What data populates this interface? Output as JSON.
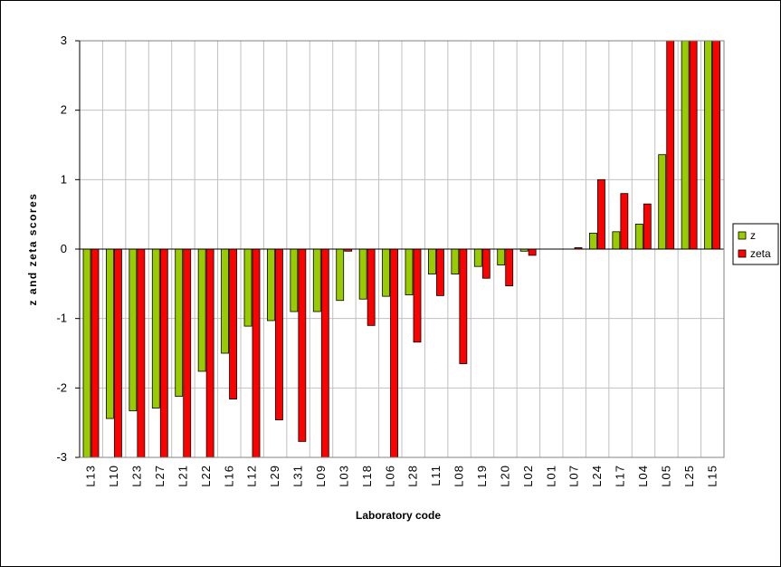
{
  "chart_data": {
    "type": "bar",
    "x_label": "Laboratory code",
    "y_label": "z and zeta scores",
    "categories": [
      "L13",
      "L10",
      "L23",
      "L27",
      "L21",
      "L22",
      "L16",
      "L12",
      "L29",
      "L31",
      "L09",
      "L03",
      "L18",
      "L06",
      "L28",
      "L11",
      "L08",
      "L19",
      "L20",
      "L02",
      "L01",
      "L07",
      "L24",
      "L17",
      "L04",
      "L05",
      "L25",
      "L15"
    ],
    "series": [
      {
        "name": "z",
        "color": "#99cc00",
        "values": [
          -3,
          -2.44,
          -2.33,
          -2.29,
          -2.12,
          -1.76,
          -1.5,
          -1.11,
          -1.03,
          -0.9,
          -0.9,
          -0.74,
          -0.72,
          -0.68,
          -0.66,
          -0.36,
          -0.36,
          -0.25,
          -0.23,
          -0.03,
          0,
          0,
          0.23,
          0.25,
          0.36,
          1.36,
          3,
          3
        ]
      },
      {
        "name": "zeta",
        "color": "#ff0000",
        "values": [
          -3,
          -3,
          -3,
          -3,
          -3,
          -3,
          -2.16,
          -3,
          -2.46,
          -2.77,
          -3,
          -0.03,
          -1.1,
          -3,
          -1.34,
          -0.67,
          -1.65,
          -0.42,
          -0.53,
          -0.09,
          0,
          0.02,
          1.0,
          0.8,
          0.65,
          3,
          3,
          3
        ]
      }
    ],
    "ylim": [
      -3,
      3
    ],
    "yticks": [
      -3,
      -2,
      -1,
      0,
      1,
      2,
      3
    ],
    "grid": true,
    "legend": "right"
  }
}
